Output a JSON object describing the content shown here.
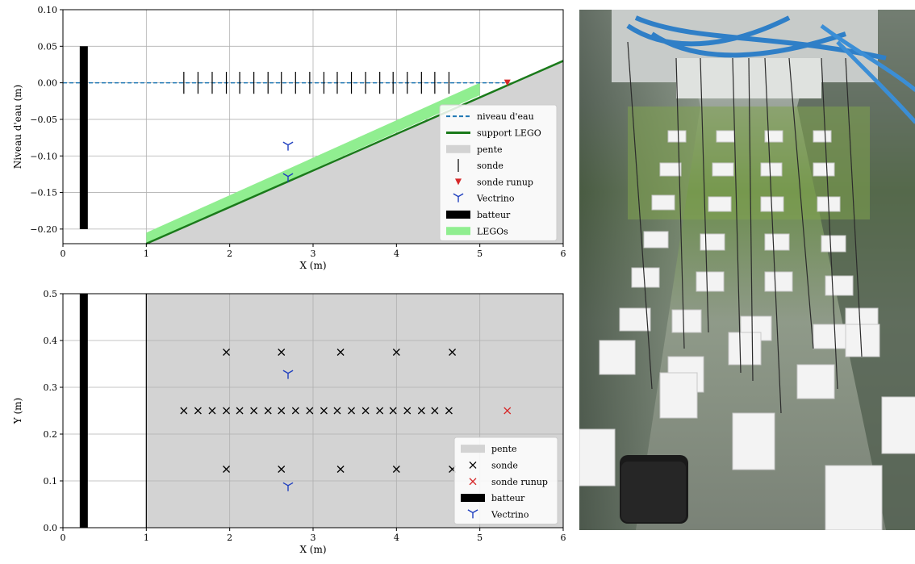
{
  "chart_data": [
    {
      "type": "line",
      "xlabel": "X (m)",
      "ylabel": "Niveau d'eau (m)",
      "xlim": [
        0,
        6
      ],
      "ylim": [
        -0.22,
        0.1
      ],
      "xticks": [
        "0",
        "1",
        "2",
        "3",
        "4",
        "5",
        "6"
      ],
      "yticks": [
        "0.10",
        "0.05",
        "0.00",
        "−0.05",
        "−0.10",
        "−0.15",
        "−0.20"
      ],
      "grid": true,
      "legend_position": "right",
      "legend": [
        "niveau d'eau",
        "support LEGO",
        "pente",
        "sonde",
        "sonde runup",
        "Vectrino",
        "batteur",
        "LEGOs"
      ],
      "water_level": {
        "x": [
          0,
          5.3
        ],
        "y": [
          0,
          0
        ]
      },
      "support": {
        "x": [
          1,
          6
        ],
        "y": [
          -0.22,
          0.03
        ]
      },
      "legos_band": {
        "x": [
          1,
          5
        ],
        "y_bottom": [
          -0.22,
          -0.017
        ],
        "y_top": [
          -0.205,
          0.0
        ]
      },
      "batteur": {
        "x": 0.25,
        "y": [
          -0.2,
          0.05
        ]
      },
      "probes_x": [
        1.45,
        1.62,
        1.79,
        1.96,
        2.12,
        2.29,
        2.46,
        2.62,
        2.79,
        2.96,
        3.13,
        3.29,
        3.46,
        3.63,
        3.8,
        3.96,
        4.13,
        4.3,
        4.46,
        4.63
      ],
      "probe_y": [
        -0.015,
        0.015
      ],
      "runup_probe": {
        "x": 5.33,
        "y": 0.0
      },
      "vectrinos": [
        {
          "x": 2.7,
          "y": -0.085
        },
        {
          "x": 2.7,
          "y": -0.128
        }
      ]
    },
    {
      "type": "scatter",
      "xlabel": "X (m)",
      "ylabel": "Y (m)",
      "xlim": [
        0,
        6
      ],
      "ylim": [
        0.0,
        0.5
      ],
      "xticks": [
        "0",
        "1",
        "2",
        "3",
        "4",
        "5",
        "6"
      ],
      "yticks": [
        "0.5",
        "0.4",
        "0.3",
        "0.2",
        "0.1",
        "0.0"
      ],
      "grid": true,
      "legend_position": "lower-right",
      "legend": [
        "pente",
        "sonde",
        "sonde runup",
        "batteur",
        "Vectrino"
      ],
      "pente_from_x": 1,
      "batteur": {
        "x": 0.25
      },
      "probes": [
        {
          "x": 1.96,
          "y": 0.375
        },
        {
          "x": 2.62,
          "y": 0.375
        },
        {
          "x": 3.33,
          "y": 0.375
        },
        {
          "x": 4.0,
          "y": 0.375
        },
        {
          "x": 4.67,
          "y": 0.375
        },
        {
          "x": 1.45,
          "y": 0.25
        },
        {
          "x": 1.62,
          "y": 0.25
        },
        {
          "x": 1.79,
          "y": 0.25
        },
        {
          "x": 1.96,
          "y": 0.25
        },
        {
          "x": 2.12,
          "y": 0.25
        },
        {
          "x": 2.29,
          "y": 0.25
        },
        {
          "x": 2.46,
          "y": 0.25
        },
        {
          "x": 2.62,
          "y": 0.25
        },
        {
          "x": 2.79,
          "y": 0.25
        },
        {
          "x": 2.96,
          "y": 0.25
        },
        {
          "x": 3.13,
          "y": 0.25
        },
        {
          "x": 3.29,
          "y": 0.25
        },
        {
          "x": 3.46,
          "y": 0.25
        },
        {
          "x": 3.63,
          "y": 0.25
        },
        {
          "x": 3.8,
          "y": 0.25
        },
        {
          "x": 3.96,
          "y": 0.25
        },
        {
          "x": 4.13,
          "y": 0.25
        },
        {
          "x": 4.3,
          "y": 0.25
        },
        {
          "x": 4.46,
          "y": 0.25
        },
        {
          "x": 4.63,
          "y": 0.25
        },
        {
          "x": 1.96,
          "y": 0.125
        },
        {
          "x": 2.62,
          "y": 0.125
        },
        {
          "x": 3.33,
          "y": 0.125
        },
        {
          "x": 4.0,
          "y": 0.125
        },
        {
          "x": 4.67,
          "y": 0.125
        }
      ],
      "runup_probe": {
        "x": 5.33,
        "y": 0.25
      },
      "vectrinos": [
        {
          "x": 2.7,
          "y": 0.33
        },
        {
          "x": 2.7,
          "y": 0.09
        }
      ]
    }
  ],
  "colors": {
    "water": "#1f77b4",
    "support": "#1a7a1a",
    "legos": "#90ee90",
    "pente": "#d3d3d3",
    "probe": "#000000",
    "runup": "#d62728",
    "vectrino": "#1f3fbf",
    "batteur": "#000000"
  },
  "photo": {
    "description_icon": "lego-flume-photo"
  }
}
